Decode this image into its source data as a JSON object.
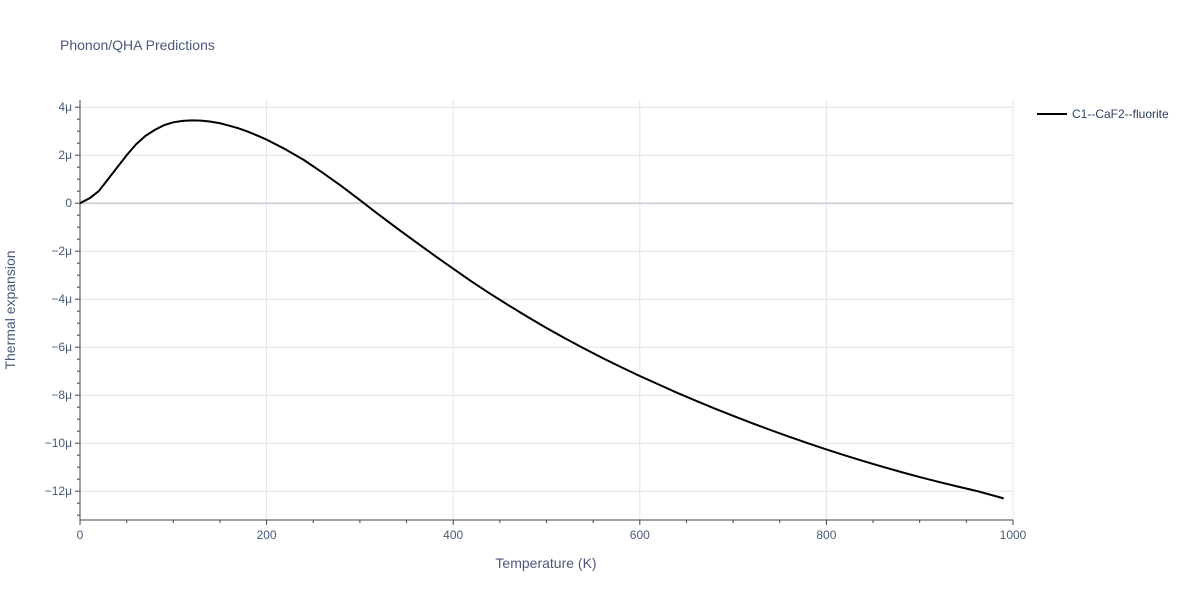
{
  "chart_data": {
    "type": "line",
    "title": "Phonon/QHA Predictions",
    "xlabel": "Temperature (K)",
    "ylabel": "Thermal expansion",
    "xlim": [
      0,
      1000
    ],
    "ylim": [
      -13.2,
      4.3
    ],
    "x_ticks": [
      0,
      200,
      400,
      600,
      800,
      1000
    ],
    "x_tick_labels": [
      "0",
      "200",
      "400",
      "600",
      "800",
      "1000"
    ],
    "y_ticks": [
      4,
      2,
      0,
      -2,
      -4,
      -6,
      -8,
      -10,
      -12
    ],
    "y_tick_labels": [
      "4μ",
      "2μ",
      "0",
      "−2μ",
      "−4μ",
      "−6μ",
      "−8μ",
      "−10μ",
      "−12μ"
    ],
    "grid": true,
    "legend_position": "top-right",
    "series": [
      {
        "name": "C1--CaF2--fluorite",
        "color": "#000000",
        "x": [
          0,
          10,
          20,
          30,
          40,
          50,
          60,
          70,
          80,
          90,
          100,
          110,
          120,
          130,
          140,
          150,
          160,
          170,
          180,
          190,
          200,
          220,
          240,
          260,
          280,
          300,
          320,
          340,
          360,
          380,
          400,
          420,
          440,
          460,
          480,
          500,
          520,
          540,
          560,
          580,
          600,
          620,
          640,
          660,
          680,
          700,
          720,
          740,
          760,
          780,
          800,
          820,
          840,
          860,
          880,
          900,
          920,
          940,
          960,
          990
        ],
        "y": [
          0.0,
          0.2,
          0.5,
          1.0,
          1.5,
          2.0,
          2.45,
          2.8,
          3.05,
          3.25,
          3.37,
          3.43,
          3.45,
          3.44,
          3.4,
          3.33,
          3.23,
          3.12,
          2.98,
          2.82,
          2.65,
          2.25,
          1.8,
          1.27,
          0.72,
          0.13,
          -0.47,
          -1.05,
          -1.62,
          -2.18,
          -2.73,
          -3.27,
          -3.78,
          -4.27,
          -4.74,
          -5.2,
          -5.63,
          -6.05,
          -6.45,
          -6.83,
          -7.2,
          -7.55,
          -7.9,
          -8.23,
          -8.55,
          -8.86,
          -9.16,
          -9.45,
          -9.73,
          -10.0,
          -10.26,
          -10.51,
          -10.75,
          -10.98,
          -11.2,
          -11.41,
          -11.61,
          -11.8,
          -11.98,
          -12.3
        ]
      }
    ]
  }
}
